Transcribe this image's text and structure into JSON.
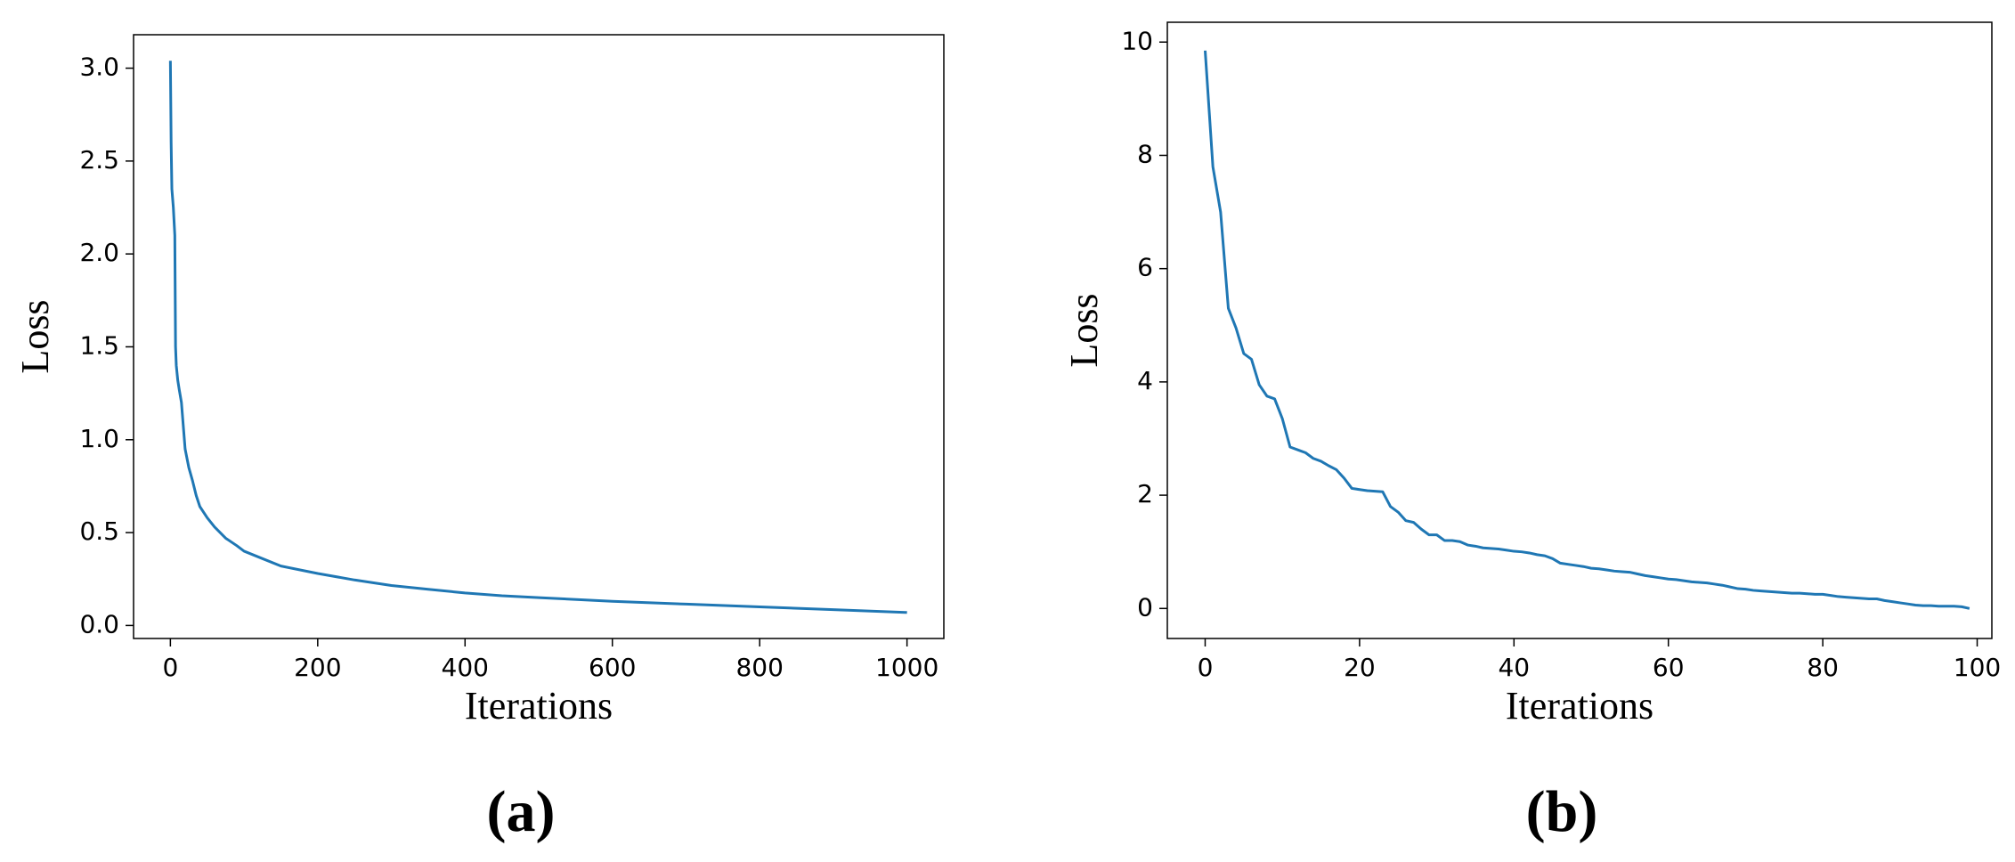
{
  "chart_data": [
    {
      "type": "line",
      "caption": "(a)",
      "xlabel": "Iterations",
      "ylabel": "Loss",
      "color": "#1f77b4",
      "x": [
        0,
        1,
        2,
        4,
        6,
        7,
        8,
        10,
        12,
        15,
        18,
        20,
        25,
        30,
        35,
        40,
        50,
        60,
        75,
        90,
        100,
        125,
        150,
        200,
        250,
        300,
        350,
        400,
        450,
        500,
        600,
        700,
        800,
        900,
        1000
      ],
      "values": [
        3.04,
        2.6,
        2.35,
        2.25,
        2.1,
        1.5,
        1.4,
        1.32,
        1.27,
        1.2,
        1.05,
        0.95,
        0.85,
        0.78,
        0.7,
        0.64,
        0.58,
        0.53,
        0.47,
        0.43,
        0.4,
        0.36,
        0.32,
        0.28,
        0.245,
        0.215,
        0.195,
        0.175,
        0.16,
        0.15,
        0.13,
        0.115,
        0.1,
        0.085,
        0.07
      ],
      "xlim": [
        -50,
        1050
      ],
      "ylim": [
        -0.07,
        3.18
      ],
      "xticks": [
        0,
        200,
        400,
        600,
        800,
        1000
      ],
      "yticks": [
        {
          "value": 0,
          "label": "0.0"
        },
        {
          "value": 0.5,
          "label": "0.5"
        },
        {
          "value": 1,
          "label": "1.0"
        },
        {
          "value": 1.5,
          "label": "1.5"
        },
        {
          "value": 2,
          "label": "2.0"
        },
        {
          "value": 2.5,
          "label": "2.5"
        },
        {
          "value": 3,
          "label": "3.0"
        }
      ]
    },
    {
      "type": "line",
      "caption": "(b)",
      "xlabel": "Iterations",
      "ylabel": "Loss",
      "color": "#1f77b4",
      "x": [
        0,
        1,
        2,
        3,
        4,
        5,
        6,
        7,
        8,
        9,
        10,
        11,
        12,
        13,
        14,
        15,
        16,
        17,
        18,
        19,
        20,
        21,
        22,
        23,
        24,
        25,
        26,
        27,
        28,
        29,
        30,
        31,
        32,
        33,
        34,
        35,
        36,
        37,
        38,
        39,
        40,
        41,
        42,
        43,
        44,
        45,
        46,
        47,
        48,
        49,
        50,
        51,
        52,
        53,
        54,
        55,
        56,
        57,
        58,
        59,
        60,
        61,
        62,
        63,
        64,
        65,
        66,
        67,
        68,
        69,
        70,
        71,
        72,
        73,
        74,
        75,
        76,
        77,
        78,
        79,
        80,
        81,
        82,
        83,
        84,
        85,
        86,
        87,
        88,
        89,
        90,
        91,
        92,
        93,
        94,
        95,
        96,
        97,
        98,
        99
      ],
      "values": [
        9.85,
        7.8,
        7.0,
        5.3,
        4.95,
        4.5,
        4.4,
        3.95,
        3.75,
        3.7,
        3.35,
        2.85,
        2.8,
        2.75,
        2.65,
        2.6,
        2.52,
        2.45,
        2.3,
        2.12,
        2.1,
        2.08,
        2.07,
        2.06,
        1.8,
        1.7,
        1.55,
        1.52,
        1.4,
        1.3,
        1.3,
        1.2,
        1.2,
        1.18,
        1.12,
        1.1,
        1.07,
        1.06,
        1.05,
        1.03,
        1.01,
        1.0,
        0.98,
        0.95,
        0.93,
        0.88,
        0.8,
        0.78,
        0.76,
        0.74,
        0.71,
        0.7,
        0.68,
        0.66,
        0.65,
        0.64,
        0.61,
        0.58,
        0.56,
        0.54,
        0.52,
        0.51,
        0.49,
        0.47,
        0.46,
        0.45,
        0.43,
        0.41,
        0.38,
        0.35,
        0.34,
        0.32,
        0.31,
        0.3,
        0.29,
        0.28,
        0.27,
        0.27,
        0.26,
        0.25,
        0.25,
        0.23,
        0.21,
        0.2,
        0.19,
        0.18,
        0.17,
        0.17,
        0.14,
        0.12,
        0.1,
        0.08,
        0.06,
        0.05,
        0.05,
        0.04,
        0.04,
        0.04,
        0.03,
        0.0
      ],
      "xlim": [
        -4.9,
        101.9
      ],
      "ylim": [
        -0.53,
        10.35
      ],
      "xticks": [
        0,
        20,
        40,
        60,
        80,
        100
      ],
      "yticks": [
        0,
        2,
        4,
        6,
        8,
        10
      ]
    }
  ]
}
